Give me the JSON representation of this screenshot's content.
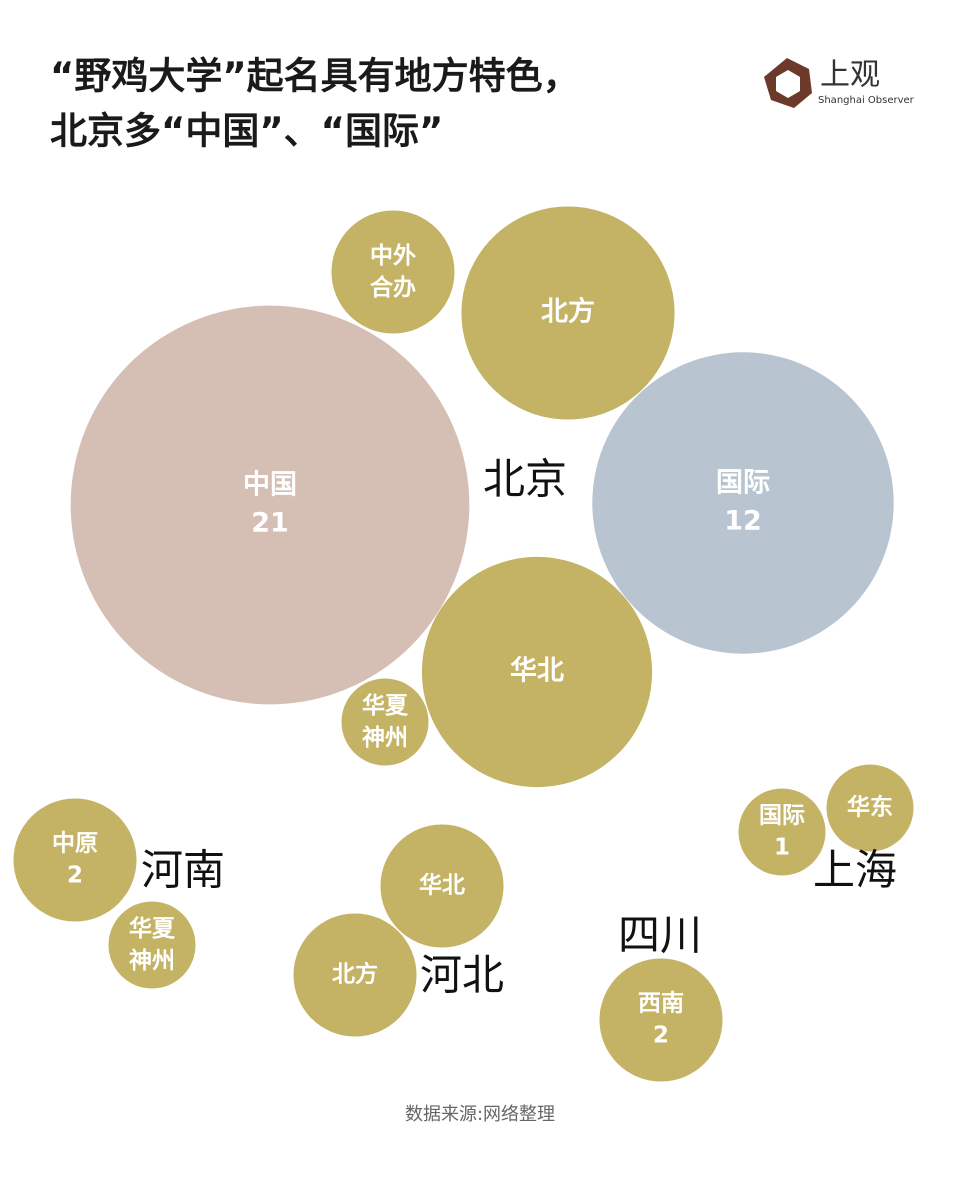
{
  "chart_data": {
    "type": "bubble",
    "title": [
      "“野鸡大学”起名具有地方特色，",
      "北京多“中国”、“国际”"
    ],
    "brand": {
      "name": "上观",
      "subtitle": "Shanghai Observer"
    },
    "source": "数据来源:网络整理",
    "groups": [
      {
        "name": "北京",
        "categories": [
          "中国",
          "中外合办",
          "北方",
          "国际",
          "华北",
          "华夏神州"
        ],
        "values": [
          21,
          2,
          6,
          12,
          7,
          1
        ],
        "value_labels": [
          "21",
          null,
          null,
          "12",
          null,
          null
        ],
        "colors": [
          "#d5beb3",
          "#c4b365",
          "#c4b365",
          "#b8c4d0",
          "#c4b365",
          "#c4b365"
        ]
      },
      {
        "name": "河南",
        "categories": [
          "中原",
          "华夏神州"
        ],
        "values": [
          2,
          1
        ],
        "value_labels": [
          "2",
          null
        ],
        "colors": [
          "#c4b365",
          "#c4b365"
        ]
      },
      {
        "name": "河北",
        "categories": [
          "华北",
          "北方"
        ],
        "values": [
          2,
          2
        ],
        "value_labels": [
          null,
          null
        ],
        "colors": [
          "#c4b365",
          "#c4b365"
        ]
      },
      {
        "name": "四川",
        "categories": [
          "西南"
        ],
        "values": [
          2
        ],
        "value_labels": [
          "2"
        ],
        "colors": [
          "#c4b365"
        ]
      },
      {
        "name": "上海",
        "categories": [
          "国际",
          "华东"
        ],
        "values": [
          1,
          1
        ],
        "value_labels": [
          "1",
          null
        ],
        "colors": [
          "#c4b365",
          "#c4b365"
        ]
      }
    ]
  }
}
